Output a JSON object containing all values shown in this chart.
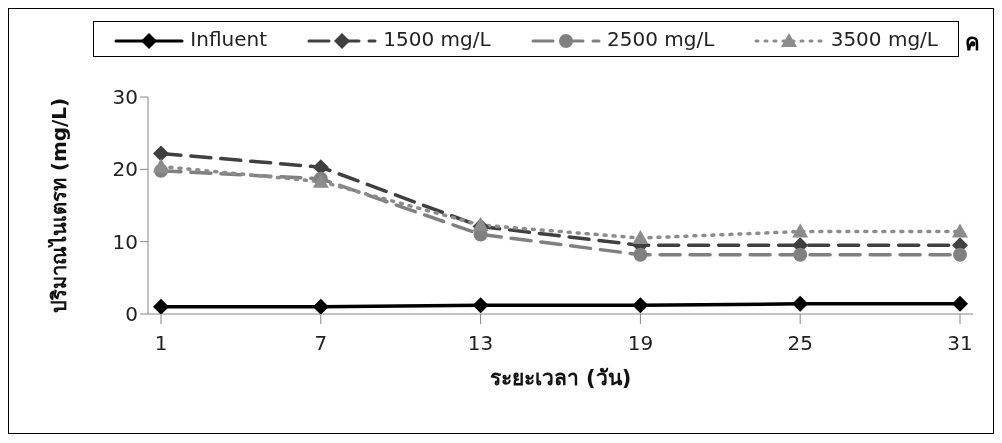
{
  "chart_data": {
    "type": "line",
    "xlabel": "ระยะเวลา (วัน)",
    "ylabel": "ปริมาณไนเตรท (mg/L)",
    "annotations": [
      "ค"
    ],
    "categories": [
      "1",
      "7",
      "13",
      "19",
      "25",
      "31"
    ],
    "series": [
      {
        "name": "Influent",
        "color": "#000000",
        "marker": "diamond",
        "line_style": "solid",
        "values": [
          1.0,
          1.0,
          1.2,
          1.2,
          1.4,
          1.4
        ]
      },
      {
        "name": "1500 mg/L",
        "color": "#404040",
        "marker": "diamond",
        "line_style": "dashed",
        "values": [
          22.2,
          20.3,
          12.1,
          9.5,
          9.5,
          9.5
        ]
      },
      {
        "name": "2500 mg/L",
        "color": "#808080",
        "marker": "circle",
        "line_style": "dashed",
        "values": [
          19.8,
          18.7,
          11.0,
          8.2,
          8.2,
          8.2
        ]
      },
      {
        "name": "3500 mg/L",
        "color": "#8c8c8c",
        "marker": "triangle",
        "line_style": "dotted",
        "values": [
          20.4,
          18.3,
          12.3,
          10.5,
          11.4,
          11.4
        ]
      }
    ],
    "ylim": [
      0,
      30
    ],
    "yticks": [
      0,
      10,
      20,
      30
    ],
    "legend": "top"
  }
}
